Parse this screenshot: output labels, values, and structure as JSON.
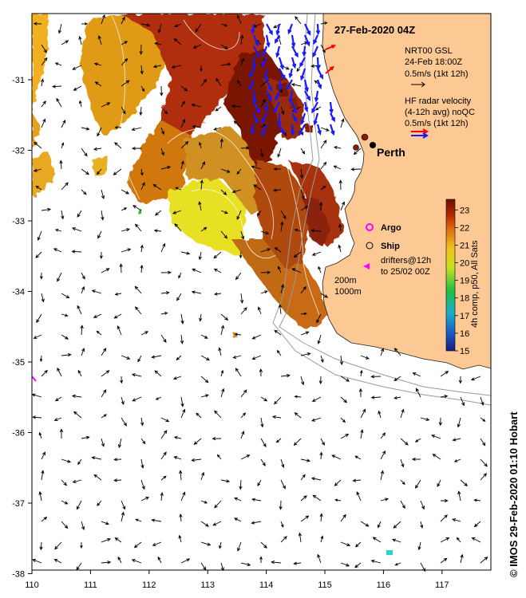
{
  "title": "27-Feb-2020 04Z",
  "city_label": "Perth",
  "legend": {
    "model_lines": [
      "NRT00 GSL",
      "24-Feb 18:00Z",
      "0.5m/s (1kt 12h)"
    ],
    "radar_lines": [
      "HF radar velocity",
      "(4-12h avg) noQC",
      "0.5m/s (1kt 12h)"
    ],
    "argo_label": "Argo",
    "ship_label": "Ship",
    "drifter_lines": [
      "drifters@12h",
      "to 25/02 00Z"
    ],
    "isobaths": [
      "200m",
      "1000m"
    ]
  },
  "colorbar": {
    "label": "4h comp, p50, All Sats",
    "ticks": [
      "15",
      "16",
      "17",
      "18",
      "19",
      "20",
      "21",
      "22",
      "23"
    ],
    "min": 15,
    "max": 23.6
  },
  "axes": {
    "x_ticks": [
      "110",
      "111",
      "112",
      "113",
      "114",
      "115",
      "116",
      "117"
    ],
    "y_ticks": [
      "-31",
      "-32",
      "-33",
      "-34",
      "-35",
      "-36",
      "-37",
      "-38"
    ],
    "lon_range": [
      110,
      117.9
    ],
    "lat_range": [
      -38,
      -30.2
    ]
  },
  "credit": "© IMOS 29-Feb-2020 01:10 Hobart",
  "colors": {
    "land": "#fcc894",
    "model_arrow": "#000000",
    "radar_arrow_blue": "#1a1aff",
    "radar_arrow_red": "#ff0000",
    "argo": "#ff00ff",
    "drifter": "#ff00ff",
    "sst_warm": "#8b1a00",
    "sst_cool": "#e8e820"
  }
}
